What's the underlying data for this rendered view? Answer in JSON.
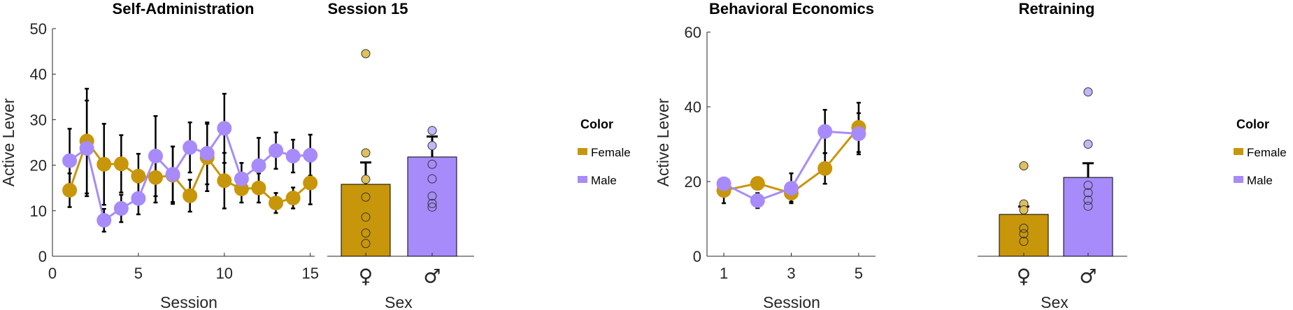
{
  "colors": {
    "female": "#C8960A",
    "male": "#A78BFA",
    "female_light": "#E0C05C",
    "male_light": "#C4B5FD"
  },
  "legend": {
    "title": "Color",
    "female": "Female",
    "male": "Male"
  },
  "chart_data": [
    {
      "type": "line",
      "title": "Self-Administration",
      "xlabel": "Session",
      "ylabel": "Active Lever",
      "xlim": [
        0,
        15.5
      ],
      "ylim": [
        0,
        50
      ],
      "xticks": [
        0,
        5,
        10,
        15
      ],
      "yticks": [
        0,
        10,
        20,
        30,
        40,
        50
      ],
      "series": [
        {
          "name": "Female",
          "x": [
            1,
            2,
            3,
            4,
            5,
            6,
            7,
            8,
            9,
            10,
            11,
            12,
            13,
            14,
            15
          ],
          "y": [
            14.5,
            25.3,
            20.2,
            20.3,
            17.6,
            17.3,
            17.8,
            13.3,
            21.7,
            16.6,
            14.8,
            15.0,
            11.7,
            12.8,
            16.1
          ],
          "err": [
            3.7,
            11.5,
            8.9,
            6.3,
            4.9,
            5.5,
            6.3,
            3.5,
            7.4,
            6.1,
            3.0,
            3.2,
            2.2,
            2.3,
            4.7
          ]
        },
        {
          "name": "Male",
          "x": [
            1,
            2,
            3,
            4,
            5,
            6,
            7,
            8,
            9,
            10,
            11,
            12,
            13,
            14,
            15
          ],
          "y": [
            21.0,
            23.7,
            7.9,
            10.5,
            12.7,
            22.0,
            18.0,
            23.9,
            22.6,
            28.1,
            17.0,
            19.9,
            23.2,
            22.0,
            22.2
          ],
          "err": [
            7.0,
            10.5,
            2.5,
            3.0,
            3.5,
            8.8,
            6.1,
            5.5,
            6.8,
            7.6,
            3.5,
            6.1,
            4.0,
            3.6,
            4.5
          ]
        }
      ]
    },
    {
      "type": "bar",
      "title": "Session 15",
      "xlabel": "Sex",
      "categories": [
        "♀",
        "♂"
      ],
      "ylim": [
        0,
        50
      ],
      "values": [
        15.8,
        21.8
      ],
      "err": [
        4.8,
        4.5
      ],
      "points": [
        [
          44.5,
          22.7,
          16.9,
          13.0,
          8.6,
          5.1,
          2.8
        ],
        [
          27.6,
          24.3,
          20.2,
          17.0,
          13.2,
          11.6,
          10.8
        ]
      ]
    },
    {
      "type": "line",
      "title": "Behavioral Economics",
      "xlabel": "Session",
      "ylabel": "Active Lever",
      "xlim": [
        0.5,
        5.5
      ],
      "ylim": [
        0,
        60
      ],
      "xticks": [
        1,
        3,
        5
      ],
      "yticks": [
        0,
        20,
        40,
        60
      ],
      "series": [
        {
          "name": "Female",
          "x": [
            1,
            2,
            3,
            4,
            5
          ],
          "y": [
            17.6,
            19.5,
            16.9,
            23.5,
            34.5
          ],
          "err": [
            3.4,
            1.6,
            2.3,
            4.1,
            6.6
          ]
        },
        {
          "name": "Male",
          "x": [
            1,
            2,
            3,
            4,
            5
          ],
          "y": [
            19.4,
            14.9,
            18.2,
            33.4,
            32.8
          ],
          "err": [
            1.6,
            2.0,
            4.0,
            5.8,
            5.5
          ]
        }
      ]
    },
    {
      "type": "bar",
      "title": "Retraining",
      "xlabel": "Sex",
      "categories": [
        "♀",
        "♂"
      ],
      "ylim": [
        0,
        60
      ],
      "values": [
        11.2,
        21.1
      ],
      "err": [
        2.1,
        3.8
      ],
      "points": [
        [
          24.2,
          14.0,
          12.4,
          7.5,
          6.0,
          4.0
        ],
        [
          44.0,
          30.0,
          19.0,
          17.0,
          15.0,
          13.4
        ]
      ]
    }
  ]
}
